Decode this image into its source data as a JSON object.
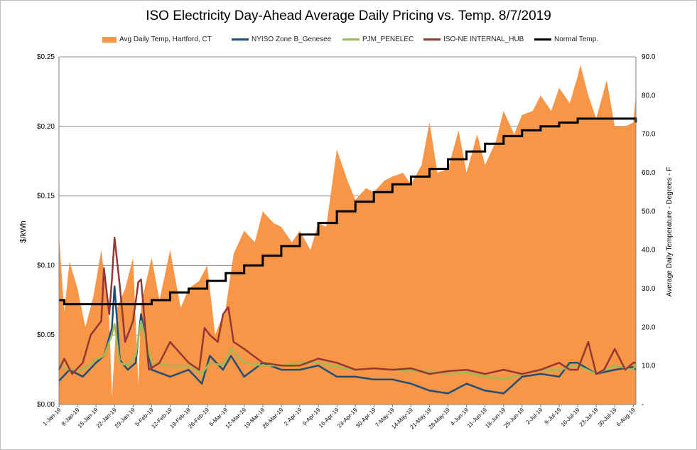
{
  "chart_data": {
    "type": "area",
    "title": "ISO Electricity Day-Ahead Average Daily Pricing vs. Temp. 8/7/2019",
    "ylabel": "$/kWh",
    "y2label": "Average Daily Temperature - Degrees - F",
    "ylim": [
      0,
      0.25
    ],
    "y2lim": [
      0,
      90
    ],
    "yticks": [
      "$0.00",
      "$0.05",
      "$0.10",
      "$0.15",
      "$0.20",
      "$0.25"
    ],
    "y2ticks": [
      "-",
      "10.0",
      "20.0",
      "30.0",
      "40.0",
      "50.0",
      "60.0",
      "70.0",
      "80.0",
      "90.0"
    ],
    "xticks": [
      "1-Jan-19",
      "8-Jan-19",
      "15-Jan-19",
      "22-Jan-19",
      "29-Jan-19",
      "5-Feb-19",
      "12-Feb-19",
      "19-Feb-19",
      "26-Feb-19",
      "5-Mar-19",
      "12-Mar-19",
      "19-Mar-19",
      "26-Mar-19",
      "2-Apr-19",
      "9-Apr-19",
      "16-Apr-19",
      "23-Apr-19",
      "30-Apr-19",
      "7-May-19",
      "14-May-19",
      "21-May-19",
      "28-May-19",
      "4-Jun-19",
      "11-Jun-19",
      "18-Jun-19",
      "25-Jun-19",
      "2-Jul-19",
      "9-Jul-19",
      "16-Jul-19",
      "23-Jul-19",
      "30-Jul-19",
      "6-Aug-19"
    ],
    "x_start": "1-Jan-19",
    "x_end": "7-Aug-19",
    "grid": true,
    "legend_position": "top",
    "series": [
      {
        "name": "Avg Daily Temp, Hartford, CT",
        "axis": "right",
        "kind": "area",
        "color": "#f79646",
        "x": [
          "1-Jan-19",
          "3-Jan-19",
          "5-Jan-19",
          "8-Jan-19",
          "11-Jan-19",
          "14-Jan-19",
          "17-Jan-19",
          "20-Jan-19",
          "21-Jan-19",
          "23-Jan-19",
          "26-Jan-19",
          "29-Jan-19",
          "31-Jan-19",
          "1-Feb-19",
          "5-Feb-19",
          "8-Feb-19",
          "12-Feb-19",
          "16-Feb-19",
          "19-Feb-19",
          "23-Feb-19",
          "26-Feb-19",
          "1-Mar-19",
          "5-Mar-19",
          "8-Mar-19",
          "12-Mar-19",
          "16-Mar-19",
          "19-Mar-19",
          "23-Mar-19",
          "26-Mar-19",
          "30-Mar-19",
          "2-Apr-19",
          "6-Apr-19",
          "9-Apr-19",
          "12-Apr-19",
          "16-Apr-19",
          "20-Apr-19",
          "23-Apr-19",
          "27-Apr-19",
          "30-Apr-19",
          "4-May-19",
          "7-May-19",
          "11-May-19",
          "14-May-19",
          "18-May-19",
          "21-May-19",
          "24-May-19",
          "28-May-19",
          "1-Jun-19",
          "4-Jun-19",
          "8-Jun-19",
          "11-Jun-19",
          "15-Jun-19",
          "18-Jun-19",
          "22-Jun-19",
          "25-Jun-19",
          "29-Jun-19",
          "2-Jul-19",
          "6-Jul-19",
          "9-Jul-19",
          "13-Jul-19",
          "16-Jul-19",
          "17-Jul-19",
          "20-Jul-19",
          "23-Jul-19",
          "27-Jul-19",
          "30-Jul-19",
          "3-Aug-19",
          "6-Aug-19",
          "7-Aug-19"
        ],
        "values": [
          44,
          24,
          37,
          30,
          20,
          28,
          40,
          22,
          2,
          25,
          30,
          38,
          5,
          26,
          38,
          27,
          40,
          25,
          30,
          32,
          36,
          18,
          25,
          39,
          45,
          42,
          50,
          47,
          46,
          42,
          45,
          40,
          47,
          46,
          66,
          58,
          53,
          56,
          55,
          58,
          59,
          60,
          57,
          62,
          73,
          60,
          61,
          71,
          60,
          70,
          62,
          68,
          76,
          70,
          75,
          76,
          80,
          76,
          82,
          78,
          85,
          88,
          80,
          74,
          84,
          72,
          72,
          73,
          80
        ]
      },
      {
        "name": "NYISO Zone B_Genesee",
        "axis": "left",
        "kind": "line",
        "color": "#1f4e79",
        "x": [
          "1-Jan-19",
          "5-Jan-19",
          "10-Jan-19",
          "15-Jan-19",
          "18-Jan-19",
          "21-Jan-19",
          "22-Jan-19",
          "24-Jan-19",
          "27-Jan-19",
          "30-Jan-19",
          "1-Feb-19",
          "5-Feb-19",
          "12-Feb-19",
          "19-Feb-19",
          "24-Feb-19",
          "27-Feb-19",
          "4-Mar-19",
          "7-Mar-19",
          "12-Mar-19",
          "19-Mar-19",
          "26-Mar-19",
          "2-Apr-19",
          "9-Apr-19",
          "16-Apr-19",
          "23-Apr-19",
          "30-Apr-19",
          "7-May-19",
          "14-May-19",
          "21-May-19",
          "28-May-19",
          "4-Jun-19",
          "11-Jun-19",
          "18-Jun-19",
          "25-Jun-19",
          "2-Jul-19",
          "9-Jul-19",
          "13-Jul-19",
          "16-Jul-19",
          "23-Jul-19",
          "30-Jul-19",
          "6-Aug-19",
          "7-Aug-19"
        ],
        "values": [
          0.017,
          0.025,
          0.02,
          0.03,
          0.035,
          0.055,
          0.085,
          0.032,
          0.025,
          0.03,
          0.065,
          0.025,
          0.02,
          0.025,
          0.015,
          0.035,
          0.025,
          0.035,
          0.02,
          0.03,
          0.025,
          0.025,
          0.028,
          0.02,
          0.02,
          0.018,
          0.018,
          0.015,
          0.01,
          0.008,
          0.015,
          0.01,
          0.008,
          0.02,
          0.022,
          0.02,
          0.03,
          0.03,
          0.022,
          0.025,
          0.027,
          0.025
        ]
      },
      {
        "name": "PJM_PENELEC",
        "axis": "left",
        "kind": "line",
        "color": "#9bbb59",
        "x": [
          "1-Jan-19",
          "5-Jan-19",
          "10-Jan-19",
          "15-Jan-19",
          "18-Jan-19",
          "21-Jan-19",
          "22-Jan-19",
          "24-Jan-19",
          "27-Jan-19",
          "30-Jan-19",
          "1-Feb-19",
          "5-Feb-19",
          "12-Feb-19",
          "19-Feb-19",
          "24-Feb-19",
          "27-Feb-19",
          "4-Mar-19",
          "7-Mar-19",
          "12-Mar-19",
          "19-Mar-19",
          "26-Mar-19",
          "2-Apr-19",
          "9-Apr-19",
          "16-Apr-19",
          "23-Apr-19",
          "30-Apr-19",
          "7-May-19",
          "14-May-19",
          "21-May-19",
          "28-May-19",
          "4-Jun-19",
          "11-Jun-19",
          "18-Jun-19",
          "25-Jun-19",
          "2-Jul-19",
          "9-Jul-19",
          "16-Jul-19",
          "23-Jul-19",
          "30-Jul-19",
          "6-Aug-19",
          "7-Aug-19"
        ],
        "values": [
          0.028,
          0.025,
          0.025,
          0.032,
          0.035,
          0.05,
          0.058,
          0.03,
          0.028,
          0.035,
          0.06,
          0.03,
          0.028,
          0.028,
          0.022,
          0.03,
          0.028,
          0.04,
          0.03,
          0.028,
          0.028,
          0.03,
          0.03,
          0.027,
          0.025,
          0.026,
          0.025,
          0.024,
          0.024,
          0.022,
          0.023,
          0.02,
          0.018,
          0.022,
          0.025,
          0.025,
          0.028,
          0.022,
          0.028,
          0.025,
          0.03
        ]
      },
      {
        "name": "ISO-NE INTERNAL_HUB",
        "axis": "left",
        "kind": "line",
        "color": "#953735",
        "x": [
          "1-Jan-19",
          "3-Jan-19",
          "6-Jan-19",
          "10-Jan-19",
          "13-Jan-19",
          "15-Jan-19",
          "17-Jan-19",
          "18-Jan-19",
          "20-Jan-19",
          "21-Jan-19",
          "22-Jan-19",
          "24-Jan-19",
          "26-Jan-19",
          "29-Jan-19",
          "31-Jan-19",
          "1-Feb-19",
          "4-Feb-19",
          "8-Feb-19",
          "12-Feb-19",
          "19-Feb-19",
          "23-Feb-19",
          "25-Feb-19",
          "27-Feb-19",
          "2-Mar-19",
          "4-Mar-19",
          "6-Mar-19",
          "8-Mar-19",
          "12-Mar-19",
          "19-Mar-19",
          "26-Mar-19",
          "2-Apr-19",
          "9-Apr-19",
          "16-Apr-19",
          "23-Apr-19",
          "30-Apr-19",
          "7-May-19",
          "14-May-19",
          "21-May-19",
          "28-May-19",
          "4-Jun-19",
          "11-Jun-19",
          "18-Jun-19",
          "25-Jun-19",
          "2-Jul-19",
          "9-Jul-19",
          "13-Jul-19",
          "16-Jul-19",
          "20-Jul-19",
          "23-Jul-19",
          "26-Jul-19",
          "30-Jul-19",
          "3-Aug-19",
          "6-Aug-19",
          "7-Aug-19"
        ],
        "values": [
          0.025,
          0.033,
          0.022,
          0.03,
          0.05,
          0.055,
          0.06,
          0.098,
          0.065,
          0.09,
          0.12,
          0.085,
          0.045,
          0.06,
          0.088,
          0.09,
          0.025,
          0.03,
          0.045,
          0.03,
          0.025,
          0.055,
          0.05,
          0.045,
          0.065,
          0.07,
          0.045,
          0.04,
          0.03,
          0.028,
          0.028,
          0.033,
          0.03,
          0.025,
          0.026,
          0.025,
          0.026,
          0.022,
          0.024,
          0.025,
          0.022,
          0.025,
          0.022,
          0.025,
          0.03,
          0.025,
          0.025,
          0.045,
          0.022,
          0.025,
          0.04,
          0.025,
          0.03,
          0.03
        ]
      },
      {
        "name": "Normal Temp.",
        "axis": "right",
        "kind": "line",
        "color": "#000000",
        "x": [
          "1-Jan-19",
          "3-Jan-19",
          "27-Jan-19",
          "5-Feb-19",
          "12-Feb-19",
          "19-Feb-19",
          "26-Feb-19",
          "5-Mar-19",
          "12-Mar-19",
          "19-Mar-19",
          "26-Mar-19",
          "2-Apr-19",
          "9-Apr-19",
          "16-Apr-19",
          "23-Apr-19",
          "30-Apr-19",
          "7-May-19",
          "14-May-19",
          "21-May-19",
          "28-May-19",
          "4-Jun-19",
          "11-Jun-19",
          "18-Jun-19",
          "25-Jun-19",
          "2-Jul-19",
          "9-Jul-19",
          "16-Jul-19",
          "23-Jul-19",
          "30-Jul-19",
          "3-Aug-19",
          "7-Aug-19"
        ],
        "values": [
          27,
          26,
          26,
          27,
          29,
          30,
          32,
          34,
          36,
          38.5,
          41,
          44,
          47,
          50,
          52.5,
          55,
          57,
          59,
          61,
          63.5,
          65.5,
          67.5,
          69.5,
          71,
          72,
          73,
          74,
          74,
          74,
          74,
          73
        ]
      }
    ]
  }
}
